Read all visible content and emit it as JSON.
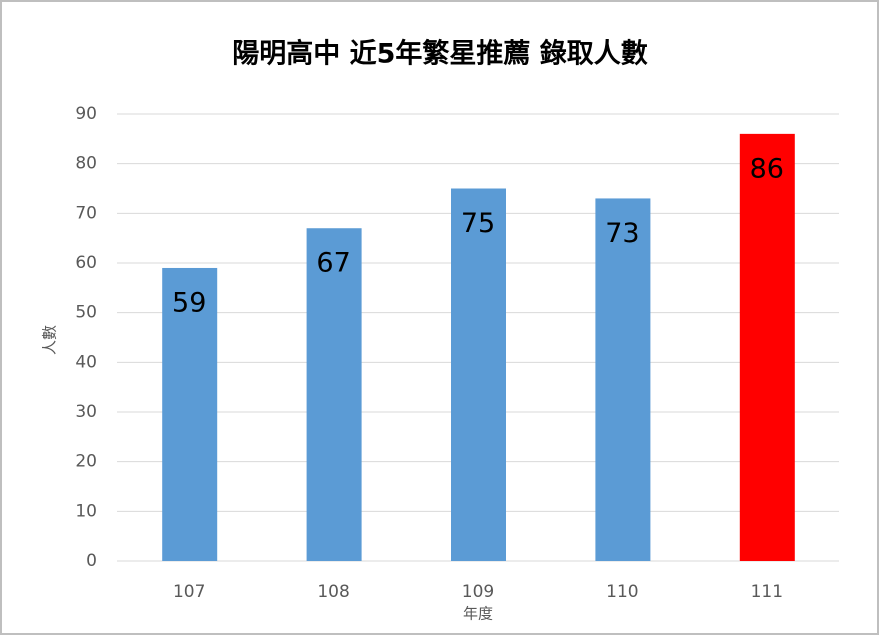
{
  "chart_data": {
    "type": "bar",
    "title": "陽明高中 近5年繁星推薦 錄取人數",
    "x_label": "年度",
    "y_label": "人數",
    "categories": [
      "107",
      "108",
      "109",
      "110",
      "111"
    ],
    "values": [
      59,
      67,
      75,
      73,
      86
    ],
    "colors": [
      "#5b9bd5",
      "#5b9bd5",
      "#5b9bd5",
      "#5b9bd5",
      "#ff0000"
    ],
    "ylim": [
      0,
      90
    ],
    "yticks": [
      0,
      10,
      20,
      30,
      40,
      50,
      60,
      70,
      80,
      90
    ],
    "grid": true
  }
}
